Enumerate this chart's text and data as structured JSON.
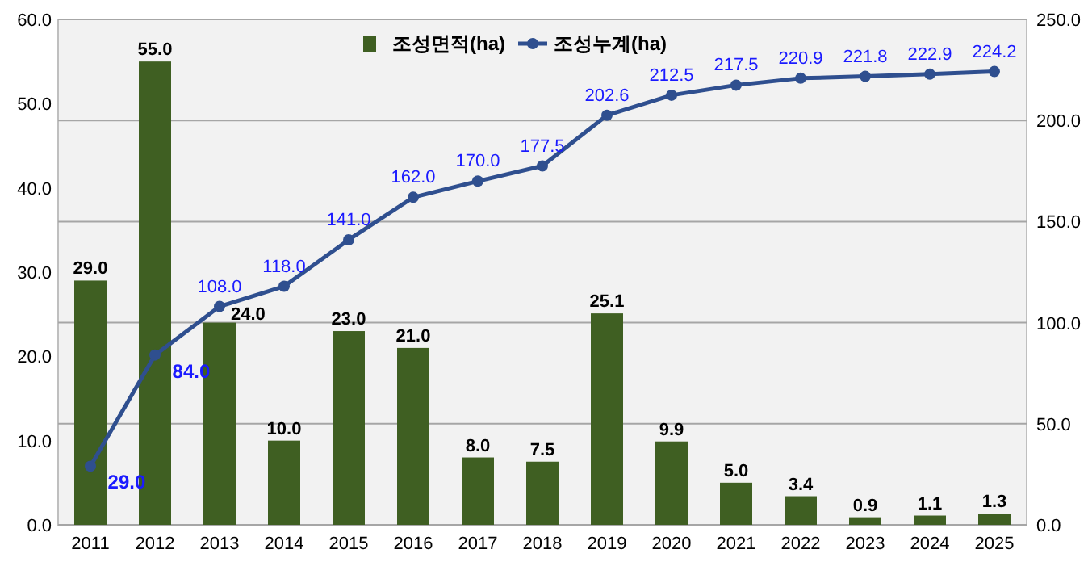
{
  "chart_data": {
    "type": "bar",
    "categories": [
      "2011",
      "2012",
      "2013",
      "2014",
      "2015",
      "2016",
      "2017",
      "2018",
      "2019",
      "2020",
      "2021",
      "2022",
      "2023",
      "2024",
      "2025"
    ],
    "series": [
      {
        "name": "조성면적(ha)",
        "color": "#3f5f22",
        "values": [
          29.0,
          55.0,
          24.0,
          10.0,
          23.0,
          21.0,
          8.0,
          7.5,
          25.1,
          9.9,
          5.0,
          3.4,
          0.9,
          1.1,
          1.3
        ],
        "value_labels": [
          "29.0",
          "55.0",
          "24.0",
          "10.0",
          "23.0",
          "21.0",
          "8.0",
          "7.5",
          "25.1",
          "9.9",
          "5.0",
          "3.4",
          "0.9",
          "1.1",
          "1.3"
        ]
      },
      {
        "name": "조성누계(ha)",
        "type": "line",
        "axis": "y2",
        "color": "#2f4f8f",
        "marker": "circle",
        "values": [
          29.0,
          84.0,
          108.0,
          118.0,
          141.0,
          162.0,
          170.0,
          177.5,
          202.6,
          212.5,
          217.5,
          220.9,
          221.8,
          222.9,
          224.2
        ],
        "value_labels": [
          "29.0",
          "84.0",
          "108.0",
          "118.0",
          "141.0",
          "162.0",
          "170.0",
          "177.5",
          "202.6",
          "212.5",
          "217.5",
          "220.9",
          "221.8",
          "222.9",
          "224.2"
        ]
      }
    ],
    "ylim": [
      0,
      60
    ],
    "yticks": [
      {
        "value": 0,
        "label": "0.0"
      },
      {
        "value": 10,
        "label": "10.0"
      },
      {
        "value": 20,
        "label": "20.0"
      },
      {
        "value": 30,
        "label": "30.0"
      },
      {
        "value": 40,
        "label": "40.0"
      },
      {
        "value": 50,
        "label": "50.0"
      },
      {
        "value": 60,
        "label": "60.0"
      }
    ],
    "y2lim": [
      0,
      250
    ],
    "y2ticks": [
      {
        "value": 0,
        "label": "0.0"
      },
      {
        "value": 50,
        "label": "50.0"
      },
      {
        "value": 100,
        "label": "100.0"
      },
      {
        "value": 150,
        "label": "150.0"
      },
      {
        "value": 200,
        "label": "200.0"
      },
      {
        "value": 250,
        "label": "250.0"
      }
    ],
    "grid": "y2",
    "legend": "top"
  }
}
